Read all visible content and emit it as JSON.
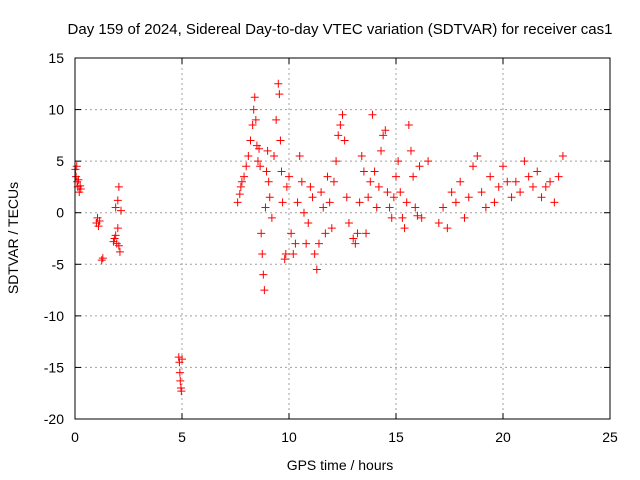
{
  "chart_data": {
    "type": "scatter",
    "title": "Day 159 of 2024, Sidereal Day-to-day VTEC variation (SDTVAR) for receiver cas1",
    "xlabel": "GPS time / hours",
    "ylabel": "SDTVAR / TECUs",
    "xlim": [
      0,
      25
    ],
    "ylim": [
      -20,
      15
    ],
    "xticks": [
      0,
      5,
      10,
      15,
      20,
      25
    ],
    "yticks": [
      -20,
      -15,
      -10,
      -5,
      0,
      5,
      10,
      15
    ],
    "grid": true,
    "marker": "+",
    "color": "#ff0000",
    "series": [
      {
        "name": "SDTVAR",
        "x": [
          0.02,
          0.05,
          0.08,
          0.1,
          0.13,
          0.16,
          0.2,
          0.24,
          0.27,
          1.0,
          1.05,
          1.1,
          1.15,
          1.25,
          1.3,
          1.8,
          1.85,
          1.9,
          1.95,
          2.0,
          2.05,
          2.1,
          2.15,
          2.0,
          1.9,
          2.05,
          4.85,
          4.88,
          4.9,
          4.92,
          4.95,
          4.97,
          5.0,
          7.6,
          7.7,
          7.75,
          7.8,
          7.9,
          8.0,
          8.1,
          8.2,
          8.3,
          8.35,
          8.4,
          8.45,
          8.5,
          8.55,
          8.6,
          8.65,
          8.7,
          8.75,
          8.8,
          8.85,
          8.9,
          8.95,
          9.0,
          9.05,
          9.1,
          9.2,
          9.3,
          9.4,
          9.5,
          9.55,
          9.6,
          9.65,
          9.7,
          9.8,
          9.85,
          9.9,
          10.0,
          10.1,
          10.2,
          10.3,
          10.4,
          10.5,
          10.6,
          10.7,
          10.8,
          10.9,
          11.0,
          11.1,
          11.2,
          11.3,
          11.4,
          11.5,
          11.6,
          11.7,
          11.8,
          11.9,
          12.0,
          12.1,
          12.2,
          12.3,
          12.4,
          12.5,
          12.6,
          12.7,
          12.8,
          13.0,
          13.1,
          13.2,
          13.3,
          13.4,
          13.5,
          13.6,
          13.7,
          13.8,
          13.9,
          14.0,
          14.1,
          14.2,
          14.3,
          14.4,
          14.5,
          14.6,
          14.7,
          14.8,
          14.9,
          15.0,
          15.1,
          15.2,
          15.3,
          15.4,
          15.5,
          15.6,
          15.7,
          15.8,
          15.9,
          16.0,
          16.1,
          16.2,
          16.5,
          17.0,
          17.2,
          17.4,
          17.6,
          17.8,
          18.0,
          18.2,
          18.4,
          18.6,
          18.8,
          19.0,
          19.2,
          19.4,
          19.6,
          19.8,
          20.0,
          20.2,
          20.4,
          20.6,
          20.8,
          21.0,
          21.2,
          21.4,
          21.6,
          21.8,
          22.0,
          22.2,
          22.4,
          22.6,
          22.8
        ],
        "y": [
          4.2,
          3.5,
          4.5,
          3.0,
          2.5,
          3.2,
          2.0,
          2.6,
          2.3,
          -1.0,
          -0.5,
          -1.3,
          -0.8,
          -4.6,
          -4.4,
          -2.8,
          -2.5,
          0.5,
          -3.0,
          -1.5,
          2.5,
          -3.8,
          0.2,
          1.2,
          -2.2,
          -3.2,
          -14.0,
          -14.5,
          -15.5,
          -16.3,
          -17.0,
          -17.3,
          -14.2,
          1.0,
          1.8,
          2.5,
          3.0,
          3.5,
          4.5,
          5.5,
          7.0,
          8.5,
          10.0,
          11.2,
          9.0,
          6.5,
          5.0,
          6.2,
          4.5,
          -2.0,
          -4.0,
          -6.0,
          -7.5,
          0.5,
          4.0,
          6.0,
          3.0,
          1.5,
          -0.5,
          5.5,
          9.0,
          12.5,
          11.5,
          7.0,
          4.0,
          1.0,
          -4.5,
          -4.0,
          2.5,
          3.5,
          -2.0,
          -4.0,
          -3.0,
          1.0,
          5.5,
          3.0,
          0.0,
          -3.0,
          -1.0,
          2.5,
          1.5,
          -4.0,
          -5.5,
          -3.0,
          2.0,
          0.5,
          -2.0,
          3.5,
          1.0,
          -1.5,
          3.0,
          5.0,
          7.5,
          8.5,
          9.5,
          7.0,
          1.5,
          -1.0,
          -2.5,
          -3.0,
          -2.0,
          1.0,
          5.5,
          4.0,
          -2.0,
          1.5,
          3.0,
          9.5,
          4.0,
          0.5,
          2.5,
          6.0,
          7.5,
          8.0,
          2.0,
          0.5,
          -0.5,
          1.5,
          3.5,
          5.0,
          2.0,
          -0.5,
          -1.5,
          1.0,
          8.5,
          6.0,
          3.5,
          0.5,
          -0.3,
          4.5,
          -0.5,
          5.0,
          -1.0,
          0.5,
          -1.5,
          2.0,
          1.0,
          3.0,
          -0.5,
          1.5,
          4.5,
          5.5,
          2.0,
          0.5,
          3.5,
          1.0,
          2.5,
          4.5,
          3.0,
          1.5,
          3.0,
          2.0,
          5.0,
          3.5,
          2.5,
          4.0,
          1.5,
          2.5,
          3.0,
          1.0,
          3.5,
          5.5
        ]
      }
    ]
  }
}
